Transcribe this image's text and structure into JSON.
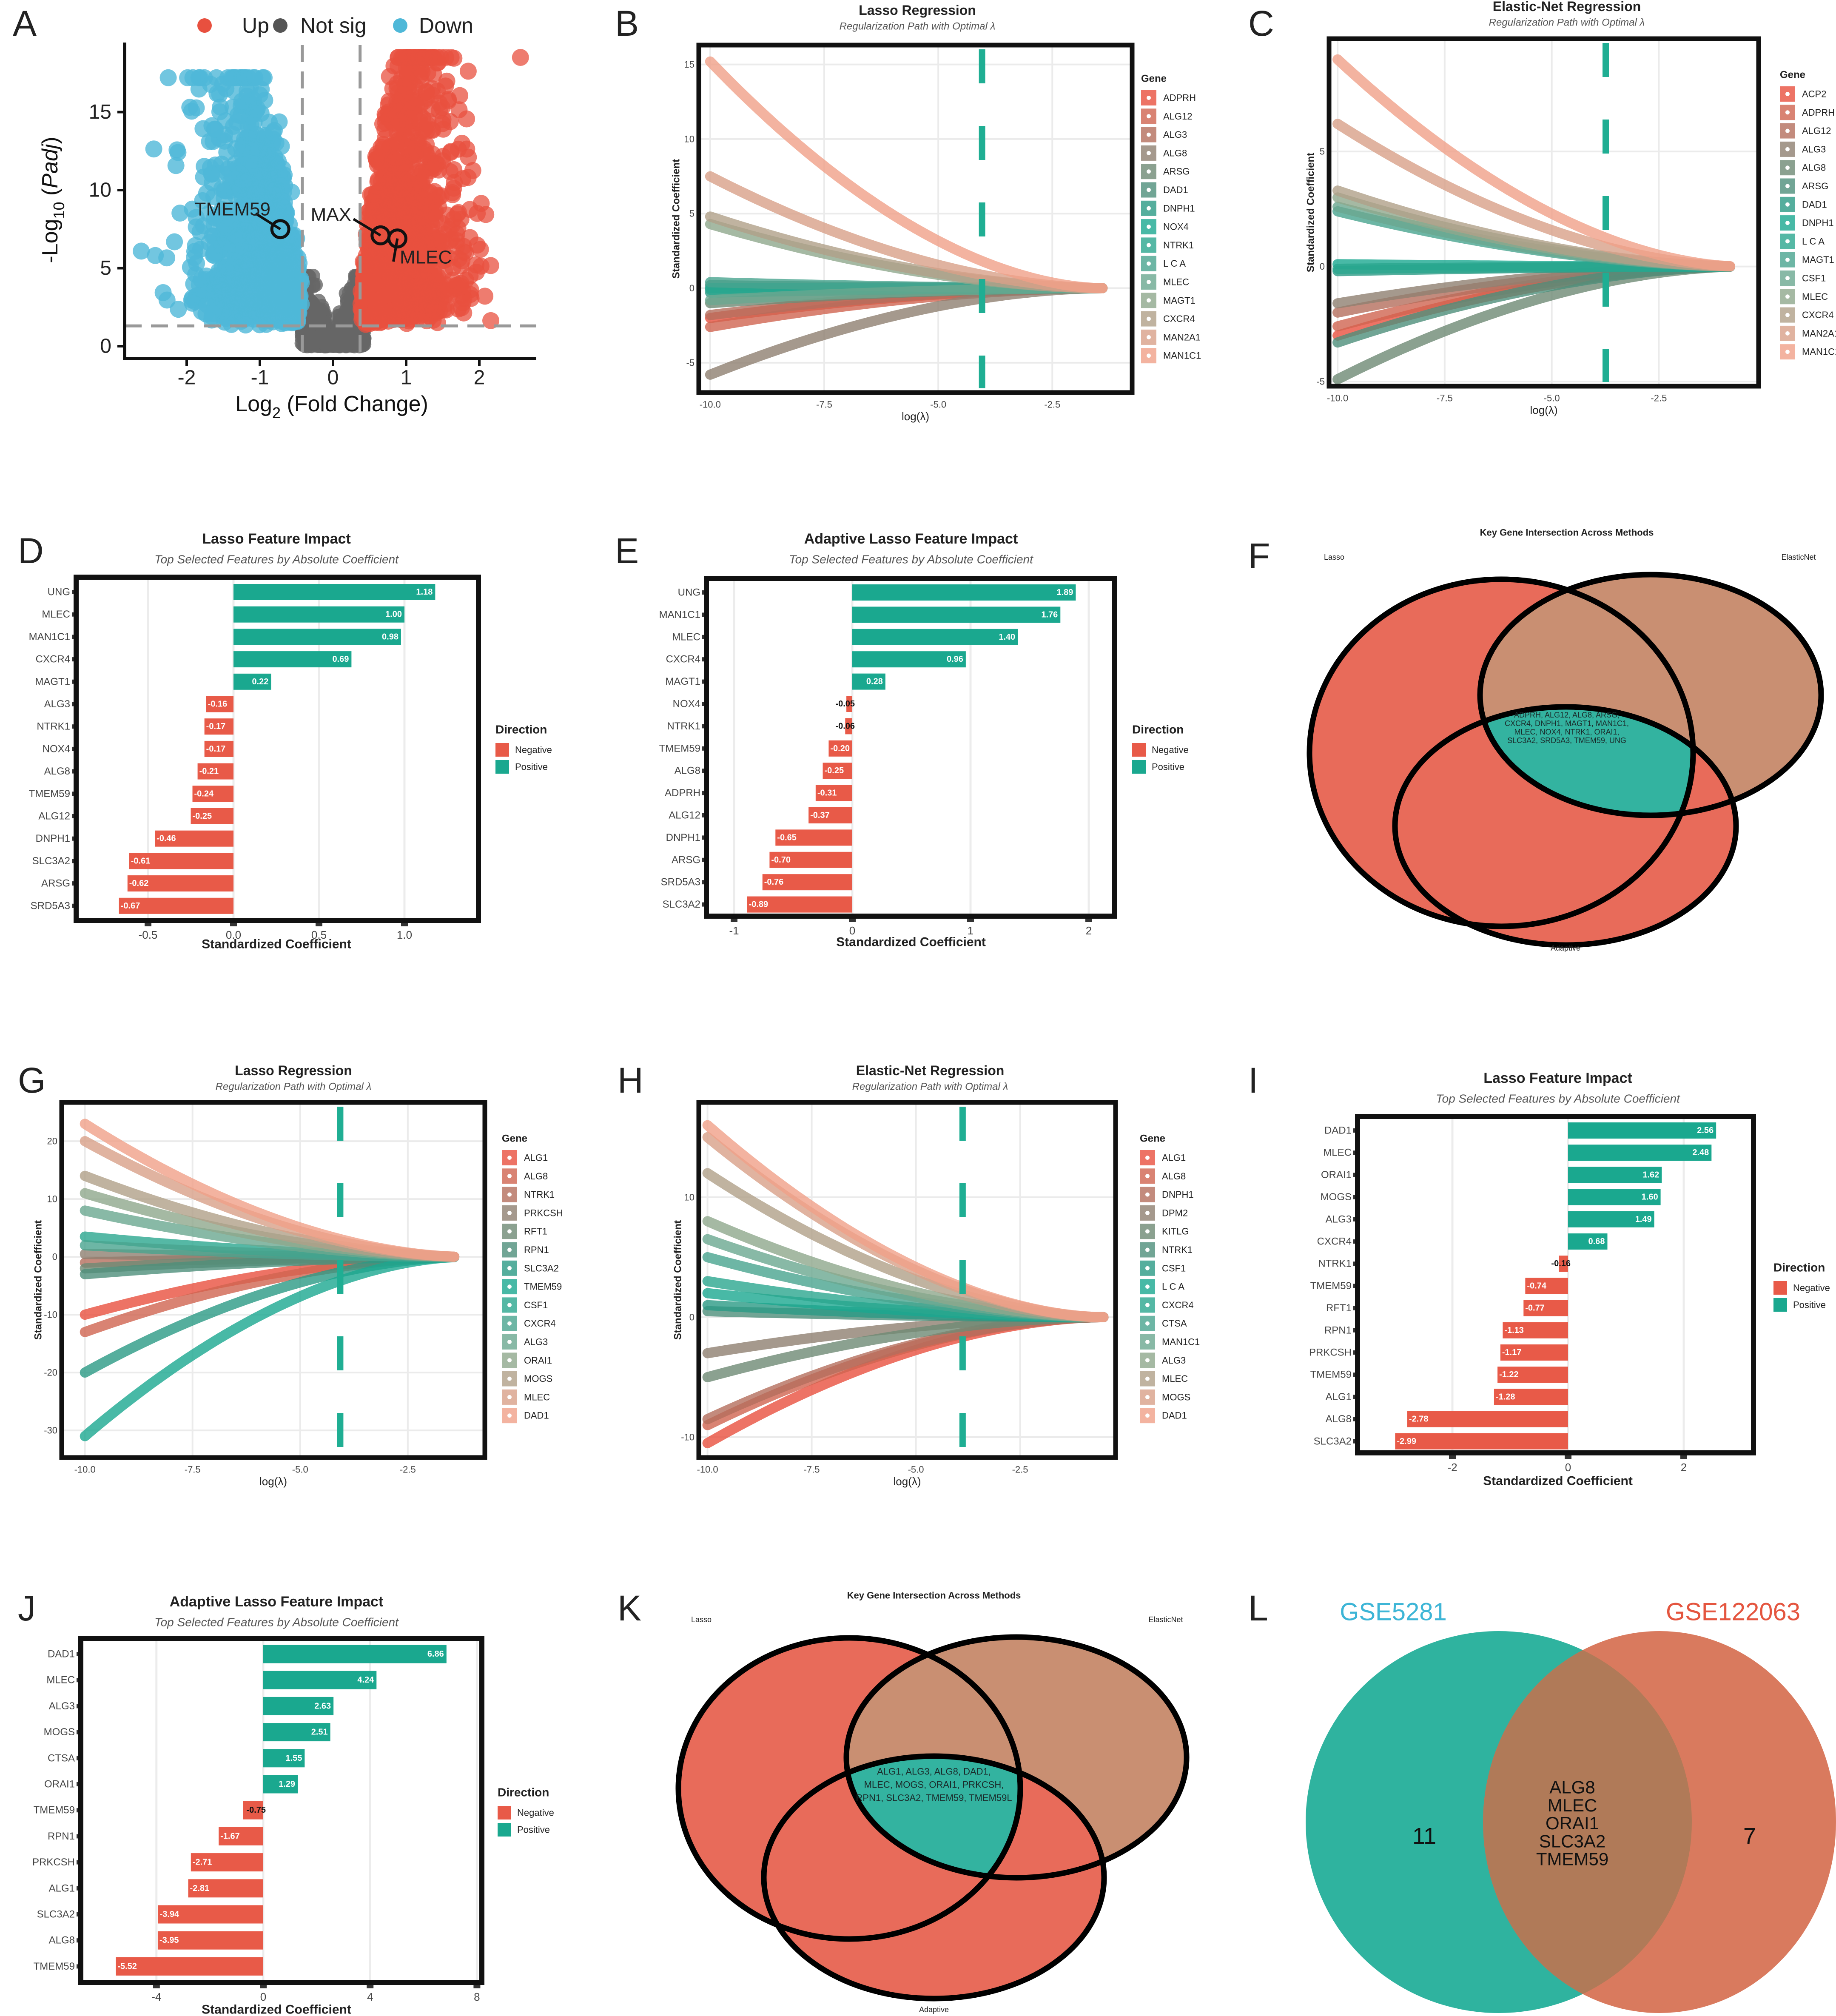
{
  "palette": [
    "#e8503f",
    "#cf6450",
    "#b46e5c",
    "#8f8070",
    "#6e8a74",
    "#4e8f7a",
    "#2b9a84",
    "#1aa890",
    "#2aa68e",
    "#48a48e",
    "#6aa890",
    "#8fa88c",
    "#b0a088",
    "#d8a088",
    "#f0a088"
  ],
  "chart_data": [
    {
      "panel": "A",
      "type": "scatter",
      "xlabel": {
        "pre": "Log",
        "sub": "2",
        "post": " (Fold Change)"
      },
      "ylabel": {
        "pre": "-Log",
        "sub": "10",
        "post": " (",
        "ital": "Padj",
        "close": ")"
      },
      "xticks": [
        -2,
        -1,
        0,
        1,
        2
      ],
      "yticks": [
        0,
        5,
        10,
        15
      ],
      "xlim": [
        -2.9,
        2.9
      ],
      "ylim": [
        -0.8,
        19.2
      ],
      "legend": [
        {
          "label": "Up",
          "color": "#e8503f"
        },
        {
          "label": "Not sig",
          "color": "#555555"
        },
        {
          "label": "Down",
          "color": "#4fb8d8"
        }
      ],
      "thresholds": {
        "log2fc": [
          -0.42,
          0.37
        ],
        "neg_log10_padj": 1.3
      },
      "labeled_genes": [
        {
          "gene": "TMEM59",
          "x": -0.72,
          "y": 7.5
        },
        {
          "gene": "MAX",
          "x": 0.65,
          "y": 7.1
        },
        {
          "gene": "MLEC",
          "x": 0.88,
          "y": 6.9
        }
      ]
    },
    {
      "panel": "B",
      "type": "line",
      "title": "Lasso Regression",
      "subtitle": "Regularization Path with Optimal λ",
      "xlabel": "log(λ)",
      "ylabel": "Standardized Coefficient",
      "legend_title": "Gene",
      "xticks": [
        -10,
        -7.5,
        -5,
        -2.5
      ],
      "xtick_labels": [
        "-10.0",
        "-7.5",
        "-5.0",
        "-2.5"
      ],
      "yticks": [
        -5,
        0,
        5,
        10,
        15
      ],
      "optimal_log_lambda": -4.04,
      "x_range": [
        -10,
        -1.4
      ],
      "genes": [
        "ADPRH",
        "ALG12",
        "ALG3",
        "ALG8",
        "ARSG",
        "DAD1",
        "DNPH1",
        "NOX4",
        "NTRK1",
        "L C A",
        "MLEC",
        "MAGT1",
        "CXCR4",
        "MAN2A1",
        "MAN1C1"
      ],
      "start_coefficients": [
        -2.0,
        -2.6,
        -1.8,
        -5.8,
        -1.0,
        0.2,
        -0.3,
        0.0,
        -0.1,
        0.4,
        -0.8,
        4.3,
        4.8,
        7.5,
        15.2
      ]
    },
    {
      "panel": "C",
      "type": "line",
      "title": "Elastic-Net Regression",
      "subtitle": "Regularization Path with Optimal λ",
      "xlabel": "log(λ)",
      "ylabel": "Standardized Coefficient",
      "legend_title": "Gene",
      "xticks": [
        -10,
        -7.5,
        -5,
        -2.5
      ],
      "xtick_labels": [
        "-10.0",
        "-7.5",
        "-5.0",
        "-2.5"
      ],
      "yticks": [
        -5,
        0,
        5
      ],
      "optimal_log_lambda": -3.74,
      "x_range": [
        -10,
        -0.6
      ],
      "genes": [
        "ACP2",
        "ADPRH",
        "ALG12",
        "ALG3",
        "ALG8",
        "ARSG",
        "DAD1",
        "DNPH1",
        "L C A",
        "MAGT1",
        "CSF1",
        "MLEC",
        "CXCR4",
        "MAN2A1",
        "MAN1C1"
      ],
      "start_coefficients": [
        -3.0,
        -2.6,
        -2.0,
        -1.6,
        -4.9,
        -3.3,
        -0.2,
        0.1,
        -0.1,
        2.4,
        2.6,
        3.0,
        3.3,
        6.2,
        9.0
      ]
    },
    {
      "panel": "D",
      "type": "bar",
      "title": "Lasso Feature Impact",
      "subtitle": "Top Selected Features by Absolute Coefficient",
      "xlabel": "Standardized Coefficient",
      "xticks": [
        -0.5,
        0,
        0.5,
        1
      ],
      "xtick_labels": [
        "-0.5",
        "0.0",
        "0.5",
        "1.0"
      ],
      "legend_title": "Direction",
      "legend": [
        "Negative",
        "Positive"
      ],
      "colors": {
        "negative": "#e85a48",
        "positive": "#1aa88f"
      },
      "genes": [
        "UNG",
        "MLEC",
        "MAN1C1",
        "CXCR4",
        "MAGT1",
        "ALG3",
        "NTRK1",
        "NOX4",
        "ALG8",
        "TMEM59",
        "ALG12",
        "DNPH1",
        "SLC3A2",
        "ARSG",
        "SRD5A3"
      ],
      "values": [
        1.18,
        1.0,
        0.98,
        0.69,
        0.22,
        -0.16,
        -0.17,
        -0.17,
        -0.21,
        -0.24,
        -0.25,
        -0.46,
        -0.61,
        -0.62,
        -0.67
      ],
      "value_labels": [
        "1.18",
        "1.00",
        "0.98",
        "0.69",
        "0.22",
        "-0.16",
        "-0.17",
        "-0.17",
        "-0.21",
        "-0.24",
        "-0.25",
        "-0.46",
        "-0.61",
        "-0.62",
        "-0.67"
      ]
    },
    {
      "panel": "E",
      "type": "bar",
      "title": "Adaptive Lasso Feature Impact",
      "subtitle": "Top Selected Features by Absolute Coefficient",
      "xlabel": "Standardized Coefficient",
      "xticks": [
        -1,
        0,
        1,
        2
      ],
      "xtick_labels": [
        "-1",
        "0",
        "1",
        "2"
      ],
      "legend_title": "Direction",
      "legend": [
        "Negative",
        "Positive"
      ],
      "colors": {
        "negative": "#e85a48",
        "positive": "#1aa88f"
      },
      "genes": [
        "UNG",
        "MAN1C1",
        "MLEC",
        "CXCR4",
        "MAGT1",
        "NOX4",
        "NTRK1",
        "TMEM59",
        "ALG8",
        "ADPRH",
        "ALG12",
        "DNPH1",
        "ARSG",
        "SRD5A3",
        "SLC3A2"
      ],
      "values": [
        1.89,
        1.76,
        1.4,
        0.96,
        0.28,
        -0.05,
        -0.06,
        -0.2,
        -0.25,
        -0.31,
        -0.37,
        -0.65,
        -0.7,
        -0.76,
        -0.89
      ],
      "value_labels": [
        "1.89",
        "1.76",
        "1.40",
        "0.96",
        "0.28",
        "-0.05",
        "-0.06",
        "-0.20",
        "-0.25",
        "-0.31",
        "-0.37",
        "-0.65",
        "-0.70",
        "-0.76",
        "-0.89"
      ]
    },
    {
      "panel": "F",
      "type": "venn",
      "title": "Key Gene Intersection Across Methods",
      "sets": [
        "Lasso",
        "ElasticNet",
        "Adaptive"
      ],
      "intersection_lines": [
        "ADPRH, ALG12, ALG8, ARSG,",
        "CXCR4, DNPH1, MAGT1, MAN1C1,",
        "MLEC, NOX4, NTRK1, ORAI1,",
        "SLC3A2, SRD5A3, TMEM59, UNG"
      ]
    },
    {
      "panel": "G",
      "type": "line",
      "title": "Lasso Regression",
      "subtitle": "Regularization Path with Optimal λ",
      "xlabel": "log(λ)",
      "ylabel": "Standardized Coefficient",
      "legend_title": "Gene",
      "xticks": [
        -10,
        -7.5,
        -5,
        -2.5
      ],
      "xtick_labels": [
        "-10.0",
        "-7.5",
        "-5.0",
        "-2.5"
      ],
      "yticks": [
        -30,
        -20,
        -10,
        0,
        10,
        20
      ],
      "optimal_log_lambda": -4.07,
      "x_range": [
        -10,
        -1.2
      ],
      "genes": [
        "ALG1",
        "ALG8",
        "NTRK1",
        "PRKCSH",
        "RFT1",
        "RPN1",
        "SLC3A2",
        "TMEM59",
        "CSF1",
        "CXCR4",
        "ALG3",
        "ORAI1",
        "MOGS",
        "MLEC",
        "DAD1"
      ],
      "start_coefficients": [
        -10,
        -13,
        -1,
        0.5,
        -2,
        -3,
        -20,
        -31,
        3.5,
        2,
        8,
        11,
        14,
        20,
        23
      ]
    },
    {
      "panel": "H",
      "type": "line",
      "title": "Elastic-Net Regression",
      "subtitle": "Regularization Path with Optimal λ",
      "xlabel": "log(λ)",
      "ylabel": "Standardized Coefficient",
      "legend_title": "Gene",
      "xticks": [
        -10,
        -7.5,
        -5,
        -2.5
      ],
      "xtick_labels": [
        "-10.0",
        "-7.5",
        "-5.0",
        "-2.5"
      ],
      "yticks": [
        -10,
        0,
        10
      ],
      "optimal_log_lambda": -3.88,
      "x_range": [
        -10,
        -0.5
      ],
      "genes": [
        "ALG1",
        "ALG8",
        "DNPH1",
        "DPM2",
        "KITLG",
        "NTRK1",
        "CSF1",
        "L C A",
        "CXCR4",
        "CTSA",
        "MAN1C1",
        "ALG3",
        "MLEC",
        "MOGS",
        "DAD1"
      ],
      "start_coefficients": [
        -10.5,
        -9,
        -8.5,
        -3,
        -5,
        0.5,
        1,
        2,
        3,
        5,
        6.5,
        8,
        12,
        15,
        16
      ]
    },
    {
      "panel": "I",
      "type": "bar",
      "title": "Lasso Feature Impact",
      "subtitle": "Top Selected Features by Absolute Coefficient",
      "xlabel": "Standardized Coefficient",
      "xticks": [
        -2,
        0,
        2
      ],
      "xtick_labels": [
        "-2",
        "0",
        "2"
      ],
      "legend_title": "Direction",
      "legend": [
        "Negative",
        "Positive"
      ],
      "colors": {
        "negative": "#e85a48",
        "positive": "#1aa88f"
      },
      "genes": [
        "DAD1",
        "MLEC",
        "ORAI1",
        "MOGS",
        "ALG3",
        "CXCR4",
        "NTRK1",
        "TMEM59",
        "RFT1",
        "RPN1",
        "PRKCSH",
        "TMEM59",
        "ALG1",
        "ALG8",
        "SLC3A2"
      ],
      "values": [
        2.56,
        2.48,
        1.62,
        1.6,
        1.49,
        0.68,
        -0.16,
        -0.74,
        -0.77,
        -1.13,
        -1.17,
        -1.22,
        -1.28,
        -2.78,
        -2.99
      ],
      "value_labels": [
        "2.56",
        "2.48",
        "1.62",
        "1.60",
        "1.49",
        "0.68",
        "-0.16",
        "-0.74",
        "-0.77",
        "-1.13",
        "-1.17",
        "-1.22",
        "-1.28",
        "-2.78",
        "-2.99"
      ]
    },
    {
      "panel": "J",
      "type": "bar",
      "title": "Adaptive Lasso Feature Impact",
      "subtitle": "Top Selected Features by Absolute Coefficient",
      "xlabel": "Standardized Coefficient",
      "xticks": [
        -4,
        0,
        4,
        8
      ],
      "xtick_labels": [
        "-4",
        "0",
        "4",
        "8"
      ],
      "legend_title": "Direction",
      "legend": [
        "Negative",
        "Positive"
      ],
      "colors": {
        "negative": "#e85a48",
        "positive": "#1aa88f"
      },
      "genes": [
        "DAD1",
        "MLEC",
        "ALG3",
        "MOGS",
        "CTSA",
        "ORAI1",
        "TMEM59",
        "RPN1",
        "PRKCSH",
        "ALG1",
        "SLC3A2",
        "ALG8",
        "TMEM59"
      ],
      "values": [
        6.86,
        4.24,
        2.63,
        2.51,
        1.55,
        1.29,
        -0.75,
        -1.67,
        -2.71,
        -2.81,
        -3.94,
        -3.95,
        -5.52
      ],
      "value_labels": [
        "6.86",
        "4.24",
        "2.63",
        "2.51",
        "1.55",
        "1.29",
        "-0.75",
        "-1.67",
        "-2.71",
        "-2.81",
        "-3.94",
        "-3.95",
        "-5.52"
      ]
    },
    {
      "panel": "K",
      "type": "venn",
      "title": "Key Gene Intersection Across Methods",
      "sets": [
        "Lasso",
        "ElasticNet",
        "Adaptive"
      ],
      "intersection_lines": [
        "ALG1, ALG3, ALG8, DAD1,",
        "MLEC, MOGS, ORAI1, PRKCSH,",
        "RPN1, SLC3A2, TMEM59, TMEM59L"
      ]
    },
    {
      "panel": "L",
      "type": "venn",
      "sets": [
        {
          "name": "GSE5281",
          "only": 11,
          "color": "#3db5d6"
        },
        {
          "name": "GSE122063",
          "only": 7,
          "color": "#e4553f"
        }
      ],
      "intersection": [
        "ALG8",
        "MLEC",
        "ORAI1",
        "SLC3A2",
        "TMEM59"
      ]
    }
  ]
}
